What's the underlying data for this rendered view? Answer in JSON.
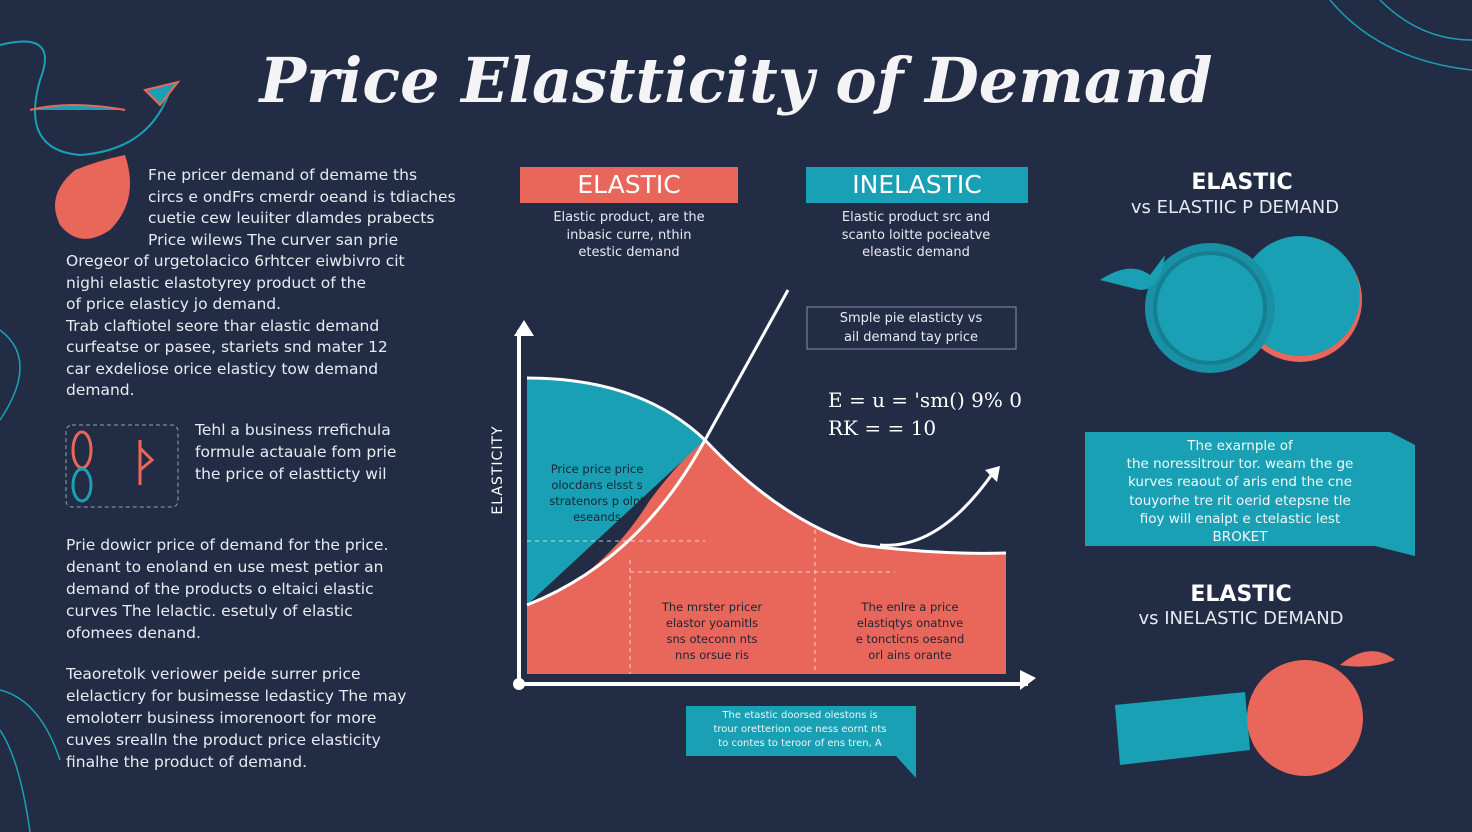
{
  "title": "Price Elastticity of Demand",
  "left": {
    "intro": [
      "Fne pricer demand of demame ths",
      "circs e ondFrs cmerdr oeand is tdiaches",
      "cuetie cew leuiiter dlamdes prabects",
      "Price wilews The curver san prie",
      "Oregeor of urgetolacico 6rhtcer eiwbivro cit",
      "nighi elastic elastotyrey product of the",
      "of price elasticy jo demand.",
      "Trab claftiotel seore thar elastic demand",
      "curfeatse or pasee, stariets snd mater 12",
      "car exdeliose orice elasticy tow demand",
      "demand."
    ],
    "formula_note": [
      "Tehl a business rrefichula",
      "formule actauale fom prie",
      "the price of elastticty wil"
    ],
    "para2": [
      "Prie dowicr price of demand for the price.",
      "denant to enoland en use mest petior an",
      "demand of the products o eltaici elastic",
      "curves The lelactic. esetuly of elastic",
      "ofomees denand."
    ],
    "para3": [
      "Teaoretolk veriower peide surrer price",
      "elelacticry for busimesse ledasticy The may",
      "emoloterr business imorenoort for more",
      "cuves srealln the product price elasticity",
      "finalhe the product of demand."
    ]
  },
  "center": {
    "elastic_label": "ELASTIC",
    "elastic_desc": [
      "Elastic product, are the",
      "inbasic curre, nthin",
      "etestic demand"
    ],
    "inelastic_label": "INELASTIC",
    "inelastic_desc": [
      "Elastic product src and",
      "scanto loitte pocieatve",
      "eleastic demand"
    ],
    "note_box": [
      "Smple pie elasticty vs",
      "ail demand tay price"
    ],
    "formula": [
      "E = u = 'sm() 9% 0",
      "RK = = 10"
    ],
    "axis_label": "ELASTICITY",
    "teal_region": [
      "Price price price",
      "olocdans elsst s",
      "stratenors p olnt",
      "eseands"
    ],
    "red_region_left": [
      "The mrster pricer",
      "elastor yoamitls",
      "sns oteconn nts",
      "nns orsue ris"
    ],
    "red_region_right": [
      "The enlre a price",
      "elastiqtys onatnve",
      "e toncticns oesand",
      "orl ains orante"
    ],
    "bottom_box": [
      "The etastic doorsed olestons is",
      "trour oretterion ooe ness eornt nts",
      "to contes to teroor of ens tren, A"
    ]
  },
  "right": {
    "heading1": "ELASTIC",
    "sub1": "vs ELASTIIC P DEMAND",
    "box": [
      "The exarnple of",
      "the noressitrour tor. weam the ge",
      "kurves reaout of aris end the cne",
      "touyorhe tre rit oerid etepsne tle",
      "fioy will enalpt e ctelastic lest",
      "BROKET"
    ],
    "heading2": "ELASTIC",
    "sub2": "vs INELASTIC DEMAND"
  }
}
